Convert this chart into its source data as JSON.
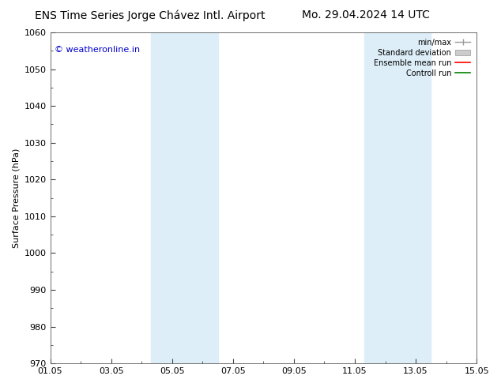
{
  "title_left": "ENS Time Series Jorge Chávez Intl. Airport",
  "title_right": "Mo. 29.04.2024 14 UTC",
  "ylabel": "Surface Pressure (hPa)",
  "ylim": [
    970,
    1060
  ],
  "yticks": [
    970,
    980,
    990,
    1000,
    1010,
    1020,
    1030,
    1040,
    1050,
    1060
  ],
  "xlim_start": 0.0,
  "xlim_end": 14.0,
  "xtick_positions": [
    0,
    2,
    4,
    6,
    8,
    10,
    12,
    14
  ],
  "xtick_labels": [
    "01.05",
    "03.05",
    "05.05",
    "07.05",
    "09.05",
    "11.05",
    "13.05",
    "15.05"
  ],
  "shaded_bands": [
    {
      "x_start": 3.3,
      "x_end": 5.5
    },
    {
      "x_start": 10.3,
      "x_end": 12.5
    }
  ],
  "band_color": "#ddeef8",
  "background_color": "#ffffff",
  "copyright_text": "© weatheronline.in",
  "copyright_color": "#0000cc",
  "copyright_fontsize": 8,
  "title_fontsize": 10,
  "legend_entries": [
    {
      "label": "min/max",
      "color": "#aaaaaa",
      "linewidth": 1.2
    },
    {
      "label": "Standard deviation",
      "color": "#cccccc",
      "linewidth": 5
    },
    {
      "label": "Ensemble mean run",
      "color": "#ff0000",
      "linewidth": 1.2
    },
    {
      "label": "Controll run",
      "color": "#008000",
      "linewidth": 1.2
    }
  ],
  "tick_fontsize": 8,
  "ylabel_fontsize": 8,
  "font_family": "DejaVu Sans"
}
